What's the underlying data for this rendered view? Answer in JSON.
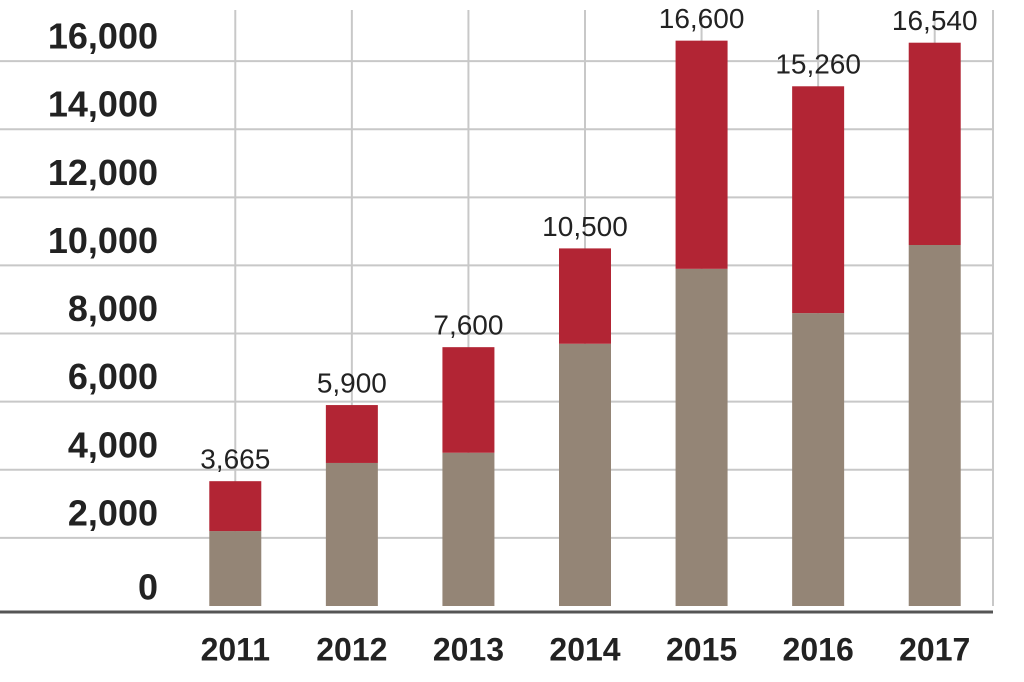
{
  "chart_data": {
    "type": "bar",
    "stacked": true,
    "categories": [
      "2011",
      "2012",
      "2013",
      "2014",
      "2015",
      "2016",
      "2017"
    ],
    "series": [
      {
        "color": "#948576",
        "values": [
          2200,
          4200,
          4500,
          7700,
          9900,
          8600,
          10600
        ]
      },
      {
        "color": "#b22534",
        "values": [
          1465,
          1700,
          3100,
          2800,
          6700,
          6660,
          5940
        ]
      }
    ],
    "totals": [
      3665,
      5900,
      7600,
      10500,
      16600,
      15260,
      16540
    ],
    "total_labels": [
      "3,665",
      "5,900",
      "7,600",
      "10,500",
      "16,600",
      "15,260",
      "16,540"
    ],
    "ylim": [
      0,
      17500
    ],
    "yticks": [
      0,
      {
        "value": 2000,
        "label": "2,000"
      },
      {
        "value": 4000,
        "label": "4,000"
      },
      {
        "value": 6000,
        "label": "6,000"
      },
      {
        "value": 8000,
        "label": "8,000"
      },
      {
        "value": 10000,
        "label": "10,000"
      },
      {
        "value": 12000,
        "label": "12,000"
      },
      {
        "value": 14000,
        "label": "14,000"
      },
      {
        "value": 16000,
        "label": "16,000"
      }
    ],
    "grid": true
  }
}
